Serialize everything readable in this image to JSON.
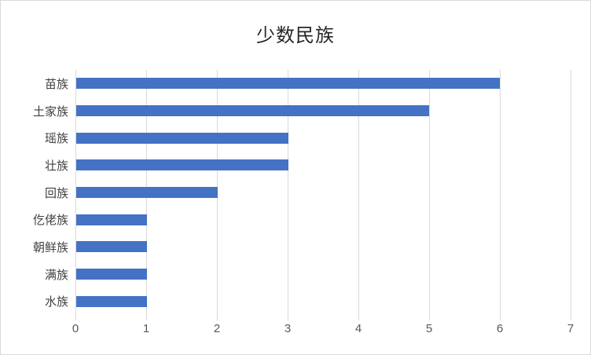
{
  "chart_data": {
    "type": "bar",
    "orientation": "horizontal",
    "title": "少数民族",
    "categories": [
      "苗族",
      "土家族",
      "瑶族",
      "壮族",
      "回族",
      "仡佬族",
      "朝鲜族",
      "满族",
      "水族"
    ],
    "values": [
      6,
      5,
      3,
      3,
      2,
      1,
      1,
      1,
      1
    ],
    "xlabel": "",
    "ylabel": "",
    "xlim": [
      0,
      7
    ],
    "xticks": [
      0,
      1,
      2,
      3,
      4,
      5,
      6,
      7
    ],
    "grid": "vertical-only",
    "legend": "none",
    "colors": {
      "bar": "#4472C4",
      "gridline": "#D9D9D9",
      "tick_text": "#595959",
      "category_text": "#404040",
      "title_text": "#262626",
      "background": "#FFFFFF",
      "frame_border": "#D9D9D9"
    }
  }
}
